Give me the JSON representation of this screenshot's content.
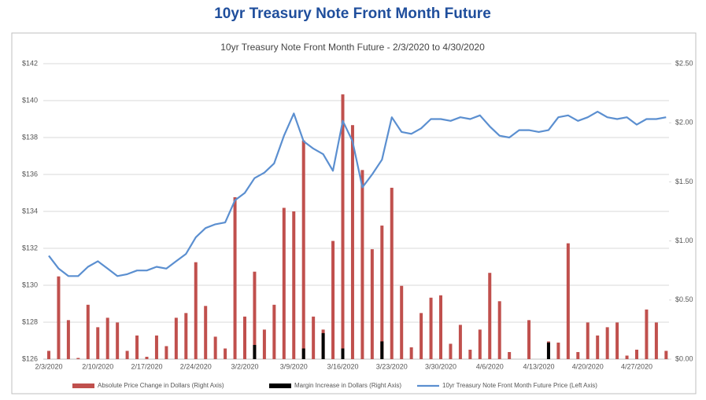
{
  "chart_data": {
    "type": "combo",
    "heading": "10yr Treasury Note Front Month Future",
    "title": "10yr Treasury Note Front Month Future - 2/3/2020 to 4/30/2020",
    "categories": [
      "2/3/2020",
      null,
      null,
      null,
      null,
      "2/10/2020",
      null,
      null,
      null,
      null,
      "2/17/2020",
      null,
      null,
      null,
      null,
      "2/24/2020",
      null,
      null,
      null,
      null,
      "3/2/2020",
      null,
      null,
      null,
      null,
      "3/9/2020",
      null,
      null,
      null,
      null,
      "3/16/2020",
      null,
      null,
      null,
      null,
      "3/23/2020",
      null,
      null,
      null,
      null,
      "3/30/2020",
      null,
      null,
      null,
      null,
      "4/6/2020",
      null,
      null,
      null,
      null,
      "4/13/2020",
      null,
      null,
      null,
      null,
      "4/20/2020",
      null,
      null,
      null,
      null,
      "4/27/2020",
      null,
      null,
      null
    ],
    "series": [
      {
        "name": "Absolute Price Change in Dollars (Right Axis)",
        "type": "bar",
        "axis": "y2",
        "color": "#c0504d",
        "values": [
          0.07,
          0.7,
          0.33,
          0.01,
          0.46,
          0.27,
          0.35,
          0.31,
          0.07,
          0.2,
          0.02,
          0.2,
          0.11,
          0.35,
          0.39,
          0.82,
          0.45,
          0.19,
          0.09,
          1.37,
          0.36,
          0.74,
          0.25,
          0.46,
          1.28,
          1.25,
          1.85,
          0.36,
          0.25,
          1.0,
          2.24,
          1.98,
          1.6,
          0.93,
          1.13,
          1.45,
          0.62,
          0.1,
          0.39,
          0.52,
          0.54,
          0.13,
          0.29,
          0.08,
          0.25,
          0.73,
          0.49,
          0.06,
          0.0,
          0.33,
          0.0,
          0.15,
          0.14,
          0.98,
          0.06,
          0.31,
          0.2,
          0.27,
          0.31,
          0.03,
          0.08,
          0.42,
          0.31,
          0.07
        ]
      },
      {
        "name": "Margin Increase in Dollars (Right Axis)",
        "type": "bar",
        "axis": "y2",
        "color": "#000000",
        "values": [
          null,
          null,
          null,
          null,
          null,
          null,
          null,
          null,
          null,
          null,
          null,
          null,
          null,
          null,
          null,
          null,
          null,
          null,
          null,
          null,
          null,
          0.12,
          null,
          null,
          null,
          null,
          0.09,
          null,
          0.22,
          null,
          0.09,
          null,
          null,
          null,
          0.15,
          null,
          null,
          null,
          null,
          null,
          null,
          null,
          null,
          null,
          null,
          null,
          null,
          null,
          null,
          null,
          null,
          0.14,
          null,
          null,
          null,
          null,
          null,
          null,
          null,
          null,
          null,
          null,
          null,
          null
        ]
      },
      {
        "name": "10yr Treasury Note Front Month Future Price (Left Axis)",
        "type": "line",
        "axis": "y",
        "color": "#5b8fd0",
        "values": [
          131.6,
          130.9,
          130.5,
          130.5,
          131.0,
          131.3,
          130.9,
          130.5,
          130.6,
          130.8,
          130.8,
          131.0,
          130.9,
          131.3,
          131.7,
          132.6,
          133.1,
          133.3,
          133.4,
          134.6,
          135.0,
          135.8,
          136.1,
          136.6,
          138.1,
          139.3,
          137.8,
          137.4,
          137.1,
          136.2,
          138.9,
          137.8,
          135.3,
          136.0,
          136.8,
          139.1,
          138.3,
          138.2,
          138.5,
          139.0,
          139.0,
          138.9,
          139.1,
          139.0,
          139.2,
          138.6,
          138.1,
          138.0,
          138.4,
          138.4,
          138.3,
          138.4,
          139.1,
          139.2,
          138.9,
          139.1,
          139.4,
          139.1,
          139.0,
          139.1,
          138.7,
          139.0,
          139.0,
          139.1
        ]
      }
    ],
    "ylim": [
      126,
      142
    ],
    "yticks": [
      {
        "value": 126,
        "label": "$126"
      },
      {
        "value": 128,
        "label": "$128"
      },
      {
        "value": 130,
        "label": "$130"
      },
      {
        "value": 132,
        "label": "$132"
      },
      {
        "value": 134,
        "label": "$134"
      },
      {
        "value": 136,
        "label": "$136"
      },
      {
        "value": 138,
        "label": "$138"
      },
      {
        "value": 140,
        "label": "$140"
      },
      {
        "value": 142,
        "label": "$142"
      }
    ],
    "y2lim": [
      0,
      2.5
    ],
    "y2ticks": [
      {
        "value": 0,
        "label": "$0.00"
      },
      {
        "value": 0.5,
        "label": "$0.50"
      },
      {
        "value": 1,
        "label": "$1.00"
      },
      {
        "value": 1.5,
        "label": "$1.50"
      },
      {
        "value": 2,
        "label": "$2.00"
      },
      {
        "value": 2.5,
        "label": "$2.50"
      }
    ],
    "grid": true,
    "legend": "bottom"
  }
}
